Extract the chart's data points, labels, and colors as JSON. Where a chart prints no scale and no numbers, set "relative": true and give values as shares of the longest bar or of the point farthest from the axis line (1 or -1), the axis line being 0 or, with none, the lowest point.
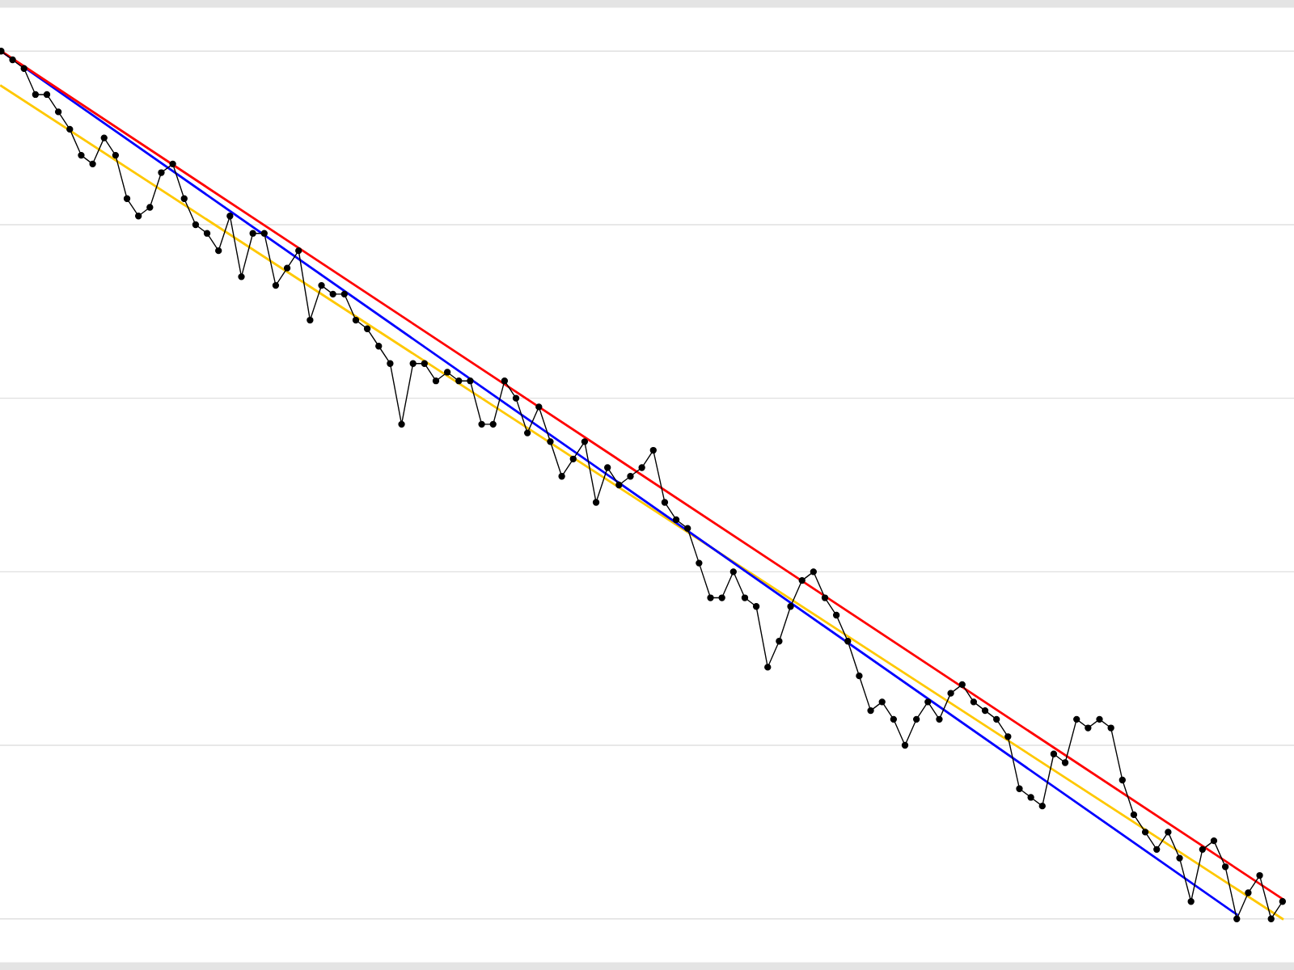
{
  "chart_data": {
    "type": "line",
    "relative": true,
    "grid": "y",
    "categories": [
      null,
      null,
      null,
      null,
      null,
      null,
      null,
      null,
      null,
      null,
      null,
      null,
      null,
      null,
      null,
      null,
      null,
      null,
      null,
      null,
      null,
      null,
      null,
      null,
      null,
      null,
      null,
      null,
      null,
      null,
      null,
      null,
      null,
      null,
      null,
      null,
      null,
      null,
      null,
      null,
      null,
      null,
      null,
      null,
      null,
      null,
      null,
      null,
      null,
      null,
      null,
      null,
      null,
      null,
      null,
      null,
      null,
      null,
      null,
      null,
      null,
      null,
      null,
      null,
      null,
      null,
      null,
      null,
      null,
      null,
      null,
      null,
      null,
      null,
      null,
      null,
      null,
      null,
      null,
      null,
      null,
      null,
      null,
      null,
      null,
      null,
      null,
      null,
      null,
      null,
      null,
      null,
      null,
      null,
      null,
      null,
      null,
      null,
      null,
      null,
      null,
      null,
      null,
      null,
      null,
      null,
      null,
      null,
      null,
      null,
      null,
      null,
      null
    ],
    "series": [
      {
        "color": "#ffc800",
        "marker": "none",
        "values": [
          0.96,
          null,
          null,
          null,
          null,
          null,
          null,
          null,
          null,
          null,
          null,
          null,
          null,
          null,
          null,
          null,
          null,
          null,
          null,
          null,
          null,
          null,
          null,
          null,
          null,
          null,
          null,
          null,
          null,
          null,
          null,
          null,
          null,
          null,
          null,
          null,
          null,
          null,
          null,
          null,
          null,
          null,
          null,
          null,
          null,
          null,
          null,
          null,
          null,
          null,
          null,
          null,
          null,
          null,
          null,
          null,
          null,
          null,
          null,
          null,
          null,
          null,
          null,
          null,
          null,
          null,
          null,
          null,
          null,
          null,
          null,
          null,
          null,
          null,
          null,
          null,
          null,
          null,
          null,
          null,
          null,
          null,
          null,
          null,
          null,
          null,
          null,
          null,
          null,
          null,
          null,
          null,
          null,
          null,
          null,
          null,
          null,
          null,
          null,
          null,
          null,
          null,
          null,
          null,
          null,
          null,
          null,
          null,
          null,
          null,
          null,
          null,
          0.0
        ]
      },
      {
        "color": "#0000ff",
        "marker": "none",
        "values": [
          1.0,
          null,
          null,
          null,
          null,
          null,
          null,
          null,
          null,
          null,
          null,
          null,
          null,
          null,
          null,
          null,
          null,
          null,
          null,
          null,
          null,
          null,
          null,
          null,
          null,
          null,
          null,
          null,
          null,
          null,
          null,
          null,
          null,
          null,
          null,
          null,
          null,
          null,
          null,
          null,
          null,
          null,
          null,
          null,
          null,
          null,
          null,
          null,
          null,
          null,
          null,
          null,
          null,
          null,
          null,
          null,
          null,
          null,
          null,
          null,
          null,
          null,
          null,
          null,
          null,
          null,
          null,
          null,
          null,
          null,
          null,
          null,
          null,
          null,
          null,
          null,
          null,
          null,
          null,
          null,
          null,
          null,
          null,
          null,
          null,
          null,
          null,
          null,
          null,
          null,
          null,
          null,
          null,
          null,
          null,
          null,
          null,
          null,
          null,
          null,
          null,
          null,
          null,
          null,
          null,
          null,
          null,
          null,
          0.005,
          null,
          null,
          null,
          null
        ]
      },
      {
        "color": "#ff0000",
        "marker": "none",
        "values": [
          1.0,
          null,
          null,
          null,
          null,
          null,
          null,
          null,
          null,
          null,
          null,
          null,
          null,
          null,
          null,
          null,
          null,
          null,
          null,
          null,
          null,
          null,
          null,
          null,
          null,
          null,
          null,
          null,
          null,
          null,
          null,
          null,
          null,
          null,
          null,
          null,
          null,
          null,
          null,
          null,
          null,
          null,
          null,
          null,
          null,
          null,
          null,
          null,
          null,
          null,
          null,
          null,
          null,
          null,
          null,
          null,
          null,
          null,
          null,
          null,
          null,
          null,
          null,
          null,
          null,
          null,
          null,
          null,
          null,
          null,
          null,
          null,
          null,
          null,
          null,
          null,
          null,
          null,
          null,
          null,
          null,
          null,
          null,
          null,
          null,
          null,
          null,
          null,
          null,
          null,
          null,
          null,
          null,
          null,
          null,
          null,
          null,
          null,
          null,
          null,
          null,
          null,
          null,
          null,
          null,
          null,
          null,
          null,
          null,
          null,
          null,
          null,
          0.023
        ]
      },
      {
        "color": "#000000",
        "marker": "circle",
        "values": [
          1.0,
          0.99,
          0.98,
          0.95,
          0.95,
          0.93,
          0.91,
          0.88,
          0.87,
          0.9,
          0.88,
          0.83,
          0.81,
          0.82,
          0.86,
          0.87,
          0.83,
          0.8,
          0.79,
          0.77,
          0.81,
          0.74,
          0.79,
          0.79,
          0.73,
          0.75,
          0.77,
          0.69,
          0.73,
          0.72,
          0.72,
          0.69,
          0.68,
          0.66,
          0.64,
          0.57,
          0.64,
          0.64,
          0.62,
          0.63,
          0.62,
          0.62,
          0.57,
          0.57,
          0.62,
          0.6,
          0.56,
          0.59,
          0.55,
          0.51,
          0.53,
          0.55,
          0.48,
          0.52,
          0.5,
          0.51,
          0.52,
          0.54,
          0.48,
          0.46,
          0.45,
          0.41,
          0.37,
          0.37,
          0.4,
          0.37,
          0.36,
          0.29,
          0.32,
          0.36,
          0.39,
          0.4,
          0.37,
          0.35,
          0.32,
          0.28,
          0.24,
          0.25,
          0.23,
          0.2,
          0.23,
          0.25,
          0.23,
          0.26,
          0.27,
          0.25,
          0.24,
          0.23,
          0.21,
          0.15,
          0.14,
          0.13,
          0.19,
          0.18,
          0.23,
          0.22,
          0.23,
          0.22,
          0.16,
          0.12,
          0.1,
          0.08,
          0.1,
          0.07,
          0.02,
          0.08,
          0.09,
          0.06,
          0.0,
          0.03,
          0.05,
          0.0,
          0.02
        ]
      }
    ]
  }
}
